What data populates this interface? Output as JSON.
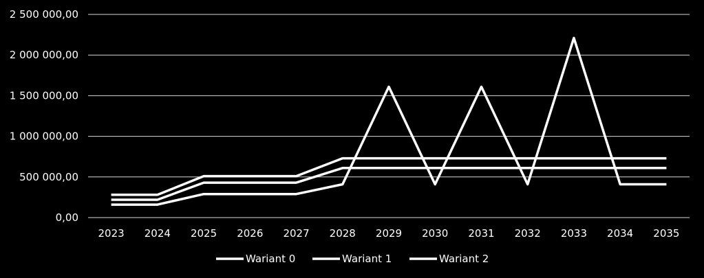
{
  "chart_data": {
    "type": "line",
    "title": "",
    "xlabel": "",
    "ylabel": "",
    "x": [
      "2023",
      "2024",
      "2025",
      "2026",
      "2027",
      "2028",
      "2029",
      "2030",
      "2031",
      "2032",
      "2033",
      "2034",
      "2035"
    ],
    "ylim": [
      0,
      2500000
    ],
    "yticks": [
      0,
      500000,
      1000000,
      1500000,
      2000000,
      2500000
    ],
    "ytick_labels": [
      "0,00",
      "500 000,00",
      "1 000 000,00",
      "1 500 000,00",
      "2 000 000,00",
      "2 500 000,00"
    ],
    "grid": true,
    "legend": "bottom",
    "series": [
      {
        "name": "Wariant 0",
        "color": "#ffffff",
        "values": [
          160000,
          160000,
          290000,
          290000,
          290000,
          410000,
          1610000,
          410000,
          1610000,
          410000,
          2210000,
          410000,
          410000
        ]
      },
      {
        "name": "Wariant 1",
        "color": "#ffffff",
        "values": [
          280000,
          280000,
          510000,
          510000,
          510000,
          730000,
          730000,
          730000,
          730000,
          730000,
          730000,
          730000,
          730000
        ]
      },
      {
        "name": "Wariant 2",
        "color": "#ffffff",
        "values": [
          220000,
          220000,
          430000,
          430000,
          430000,
          610000,
          610000,
          610000,
          610000,
          610000,
          610000,
          610000,
          610000
        ]
      }
    ]
  }
}
